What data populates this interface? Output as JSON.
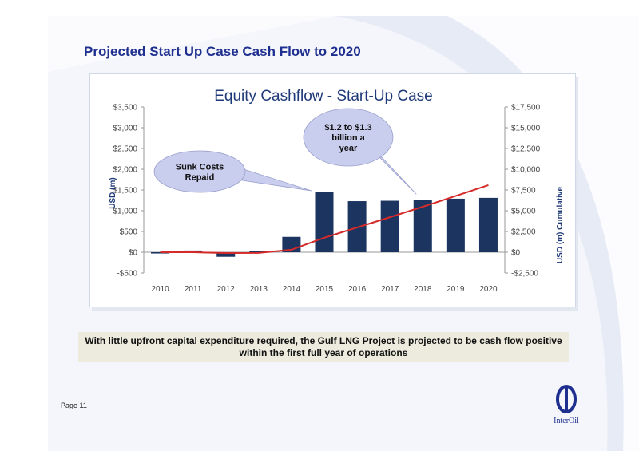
{
  "page": {
    "title": "Projected Start Up Case Cash Flow to 2020",
    "caption": "With little upfront capital expenditure required, the Gulf LNG Project is projected to be cash flow positive within the first full year of operations",
    "page_number": "Page 11",
    "logo_text": "InterOil"
  },
  "colors": {
    "bar": "#1b3560",
    "line": "#d42a2a",
    "callout_fill": "#c9cdee",
    "title_blue": "#1f2f8f"
  },
  "chart_data": {
    "type": "bar",
    "title": "Equity Cashflow - Start-Up Case",
    "categories": [
      "2010",
      "2011",
      "2012",
      "2013",
      "2014",
      "2015",
      "2016",
      "2017",
      "2018",
      "2019",
      "2020"
    ],
    "series": [
      {
        "type": "bar",
        "axis": "left",
        "values": [
          -30,
          40,
          -110,
          20,
          370,
          1450,
          1230,
          1240,
          1260,
          1290,
          1310
        ]
      },
      {
        "type": "line",
        "axis": "right",
        "values": [
          0,
          0,
          -100,
          -80,
          300,
          1750,
          2980,
          4220,
          5480,
          6770,
          8080
        ]
      }
    ],
    "ylabel": "USD (m)",
    "ylabel_right": "USD (m) Cumulative",
    "ylim": [
      -500,
      3500
    ],
    "ylim_right": [
      -2500,
      17500
    ],
    "yticks": [
      -500,
      0,
      500,
      1000,
      1500,
      2000,
      2500,
      3000,
      3500
    ],
    "yticks_right": [
      -2500,
      0,
      2500,
      5000,
      7500,
      10000,
      12500,
      15000,
      17500
    ],
    "ytick_labels": [
      "-$500",
      "$0",
      "$500",
      "$1,000",
      "$1,500",
      "$2,000",
      "$2,500",
      "$3,000",
      "$3,500"
    ],
    "ytick_labels_right": [
      "-$2,500",
      "$0",
      "$2,500",
      "$5,000",
      "$7,500",
      "$10,000",
      "$12,500",
      "$15,000",
      "$17,500"
    ],
    "grid": false,
    "annotations": [
      {
        "lines": [
          "Sunk Costs",
          "Repaid"
        ],
        "points_to": "2015"
      },
      {
        "lines": [
          "$1.2 to $1.3",
          "billion a",
          "year"
        ],
        "points_to": "2018"
      }
    ]
  }
}
